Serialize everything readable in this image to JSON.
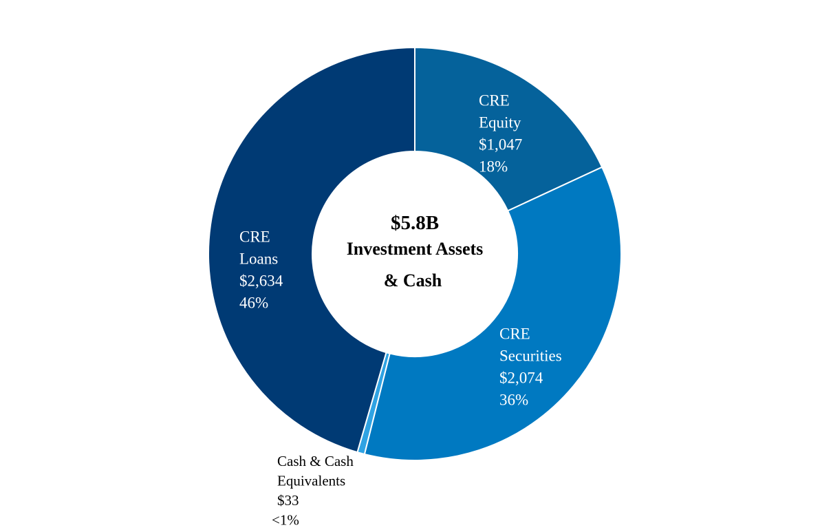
{
  "chart_data": {
    "type": "pie",
    "style": "donut",
    "center_label": {
      "total": "$5.8B",
      "line2": "Investment Assets",
      "line3": "& Cash"
    },
    "slices": [
      {
        "name": "CRE Equity",
        "label_lines": [
          "CRE",
          "Equity",
          "$1,047",
          "18%"
        ],
        "value": 1047,
        "percent": 18,
        "color": "#05629B"
      },
      {
        "name": "CRE Securities",
        "label_lines": [
          "CRE",
          "Securities",
          "$2,074",
          "36%"
        ],
        "value": 2074,
        "percent": 36,
        "color": "#0079C1"
      },
      {
        "name": "Cash & Cash Equivalents",
        "label_lines": [
          "Cash & Cash",
          "Equivalents",
          "$33",
          "<1%"
        ],
        "value": 33,
        "percent": "<1",
        "color": "#2FA3E3"
      },
      {
        "name": "CRE Loans",
        "label_lines": [
          "CRE",
          "Loans",
          "$2,634",
          "46%"
        ],
        "value": 2634,
        "percent": 46,
        "color": "#003A74"
      }
    ],
    "legend": "none",
    "grid": false
  }
}
